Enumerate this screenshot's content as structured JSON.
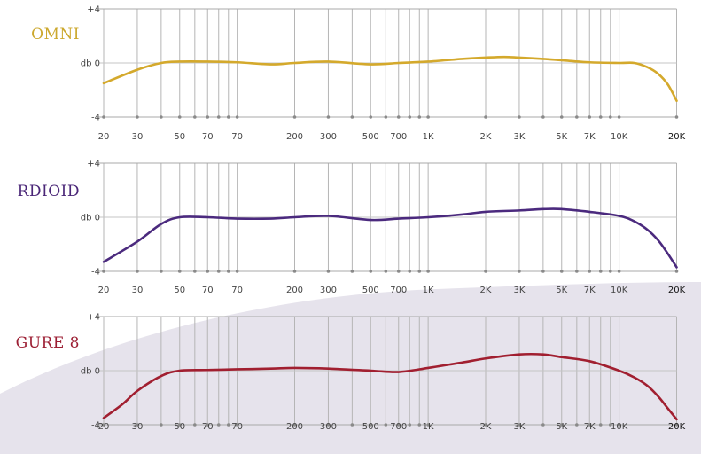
{
  "chart_data": [
    {
      "type": "line",
      "title": "OMNI",
      "title_color": "#cca82e",
      "line_color": "#d4a92c",
      "y_ticks": [
        "+4",
        "db 0",
        "-4"
      ],
      "ylim": [
        -4,
        4
      ],
      "x_tick_labels": [
        "20",
        "30",
        "50",
        "70",
        "70",
        "200",
        "300",
        "500",
        "700",
        "1K",
        "2K",
        "3K",
        "5K",
        "7K",
        "10K",
        "20K"
      ],
      "series": [
        {
          "x": [
            20,
            30,
            40,
            50,
            70,
            100,
            150,
            200,
            300,
            500,
            700,
            1000,
            1500,
            2000,
            2500,
            3000,
            4000,
            5000,
            7000,
            10000,
            12000,
            14000,
            16000,
            18000,
            20000
          ],
          "y": [
            -1.5,
            -0.5,
            0.0,
            0.1,
            0.1,
            0.05,
            -0.1,
            0.0,
            0.1,
            -0.1,
            0.0,
            0.1,
            0.3,
            0.4,
            0.45,
            0.4,
            0.3,
            0.2,
            0.05,
            0.0,
            0.0,
            -0.3,
            -0.8,
            -1.6,
            -2.8
          ]
        }
      ]
    },
    {
      "type": "line",
      "title": "RDIOID",
      "title_color": "#4a2677",
      "line_color": "#4b2a7e",
      "y_ticks": [
        "+4",
        "db 0",
        "-4"
      ],
      "ylim": [
        -4,
        4
      ],
      "x_tick_labels": [
        "20",
        "30",
        "50",
        "70",
        "70",
        "200",
        "300",
        "500",
        "700",
        "1K",
        "2K",
        "3K",
        "5K",
        "7K",
        "10K",
        "20K"
      ],
      "series": [
        {
          "x": [
            20,
            30,
            40,
            50,
            70,
            100,
            150,
            200,
            300,
            500,
            700,
            1000,
            1500,
            2000,
            3000,
            4000,
            5000,
            7000,
            10000,
            12000,
            14000,
            16000,
            18000,
            20000
          ],
          "y": [
            -3.3,
            -1.8,
            -0.5,
            0.0,
            0.0,
            -0.1,
            -0.1,
            0.0,
            0.1,
            -0.2,
            -0.1,
            0.0,
            0.2,
            0.4,
            0.5,
            0.6,
            0.6,
            0.4,
            0.1,
            -0.3,
            -0.9,
            -1.7,
            -2.7,
            -3.7
          ]
        }
      ]
    },
    {
      "type": "line",
      "title": "GURE 8",
      "title_color": "#9c1e33",
      "line_color": "#a11f30",
      "y_ticks": [
        "+4",
        "db 0",
        "-4"
      ],
      "ylim": [
        -4,
        4
      ],
      "x_tick_labels": [
        "20",
        "30",
        "50",
        "70",
        "70",
        "200",
        "300",
        "500",
        "700",
        "1K",
        "2K",
        "3K",
        "5K",
        "7K",
        "10K",
        "20K"
      ],
      "series": [
        {
          "x": [
            20,
            25,
            30,
            40,
            50,
            70,
            100,
            150,
            200,
            300,
            500,
            700,
            1000,
            1500,
            2000,
            3000,
            4000,
            5000,
            7000,
            10000,
            12000,
            14000,
            16000,
            18000,
            20000
          ],
          "y": [
            -3.5,
            -2.5,
            -1.5,
            -0.4,
            0.0,
            0.05,
            0.1,
            0.15,
            0.2,
            0.15,
            0.0,
            -0.1,
            0.2,
            0.6,
            0.9,
            1.2,
            1.2,
            1.0,
            0.7,
            0.0,
            -0.5,
            -1.1,
            -1.9,
            -2.8,
            -3.6
          ]
        }
      ]
    }
  ]
}
